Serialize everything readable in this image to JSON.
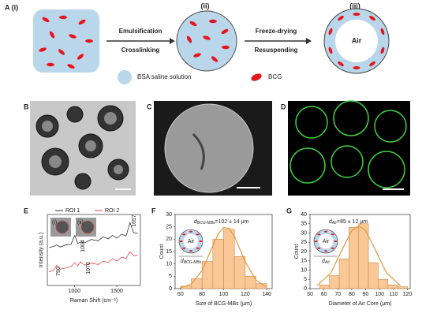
{
  "diagram": {
    "label": "A (i)",
    "stage2": "(ii)",
    "stage3": "(iii)",
    "arrow1": [
      "Emulsification",
      "Crosslinking"
    ],
    "arrow2": [
      "Freeze-drying",
      "Resuspending"
    ],
    "air": "Air",
    "legend": [
      "BSA saline solution",
      "BCG"
    ]
  },
  "images": [
    "B",
    "C",
    "D"
  ],
  "chart_data": [
    {
      "type": "line",
      "panel": "E",
      "xlabel": "Raman Shift (cm⁻¹)",
      "ylabel": "Intensity (a.u.)",
      "x": [
        700,
        760,
        790,
        830,
        900,
        960,
        1004,
        1040,
        1070,
        1120,
        1200,
        1280,
        1340,
        1400,
        1450,
        1500,
        1560,
        1610,
        1657,
        1700,
        1750
      ],
      "series": [
        {
          "name": "ROI 1",
          "color": "#333333",
          "values": [
            5.6,
            5.8,
            6.0,
            5.7,
            6.0,
            6.1,
            7.4,
            6.2,
            6.4,
            6.3,
            6.8,
            6.6,
            7.2,
            6.9,
            7.4,
            7.0,
            7.6,
            7.3,
            9.3,
            7.8,
            7.7
          ]
        },
        {
          "name": "ROI 2",
          "color": "#e8474a",
          "values": [
            2.0,
            2.3,
            3.0,
            2.4,
            2.6,
            2.8,
            3.4,
            2.9,
            3.5,
            3.0,
            3.3,
            3.1,
            3.6,
            3.4,
            4.0,
            3.6,
            4.2,
            4.0,
            5.0,
            4.4,
            4.5
          ]
        }
      ],
      "xlim": [
        680,
        1780
      ],
      "xticks": [
        1000,
        1500
      ],
      "ylim": [
        0,
        10.5
      ],
      "annotations": [
        "1004",
        "1657",
        "790",
        "1070"
      ],
      "insets": [
        "(i)",
        "(ii)"
      ]
    },
    {
      "type": "histogram",
      "panel": "F",
      "xlabel": "Size of BCG-MBs (μm)",
      "ylabel": "Count",
      "bins": [
        60,
        70,
        80,
        90,
        100,
        110,
        120,
        130,
        140
      ],
      "values": [
        1,
        4,
        11,
        20,
        24,
        13,
        5,
        2
      ],
      "color": "#f9c896",
      "edge": "#c98a4a",
      "fit": {
        "color": "#e8963a",
        "x": [
          60,
          70,
          80,
          90,
          95,
          100,
          105,
          110,
          120,
          130,
          140
        ],
        "values": [
          0.3,
          1.8,
          7.3,
          17.3,
          22.1,
          24.7,
          24.4,
          21.2,
          10.9,
          3.4,
          0.6
        ]
      },
      "xlim": [
        55,
        145
      ],
      "xticks": [
        60,
        80,
        100,
        120,
        140
      ],
      "ylim": [
        0,
        30
      ],
      "yticks": [
        0,
        5,
        10,
        15,
        20,
        25,
        30
      ],
      "annotation": {
        "symbol": "d",
        "subscript": "BCG-MBs",
        "text": "=102 ± 14 μm"
      },
      "inset": {
        "label": "Air",
        "symbol": "d",
        "subscript": "BCG-MBs"
      }
    },
    {
      "type": "histogram",
      "panel": "G",
      "xlabel": "Diameter of Air Core (μm)",
      "ylabel": "Count",
      "bins": [
        57,
        64,
        71,
        78,
        85,
        92,
        99,
        106,
        113,
        120
      ],
      "values": [
        2,
        7,
        16,
        33,
        35,
        14,
        5,
        2,
        1
      ],
      "color": "#f9c896",
      "edge": "#c98a4a",
      "fit": {
        "color": "#e8963a",
        "x": [
          55,
          65,
          75,
          80,
          85,
          90,
          95,
          105,
          115
        ],
        "values": [
          1.5,
          8.5,
          24,
          31.2,
          34,
          31.2,
          24,
          8.5,
          1.5
        ]
      },
      "xlim": [
        50,
        122
      ],
      "xticks": [
        50,
        60,
        70,
        80,
        90,
        100,
        110,
        120
      ],
      "ylim": [
        0,
        40
      ],
      "yticks": [
        0,
        5,
        10,
        15,
        20,
        25,
        30,
        35,
        40
      ],
      "annotation": {
        "symbol": "d",
        "subscript": "Air",
        "text": "=85 ± 12 μm"
      },
      "inset": {
        "label": "Air",
        "symbol": "d",
        "subscript": "Air"
      }
    }
  ]
}
